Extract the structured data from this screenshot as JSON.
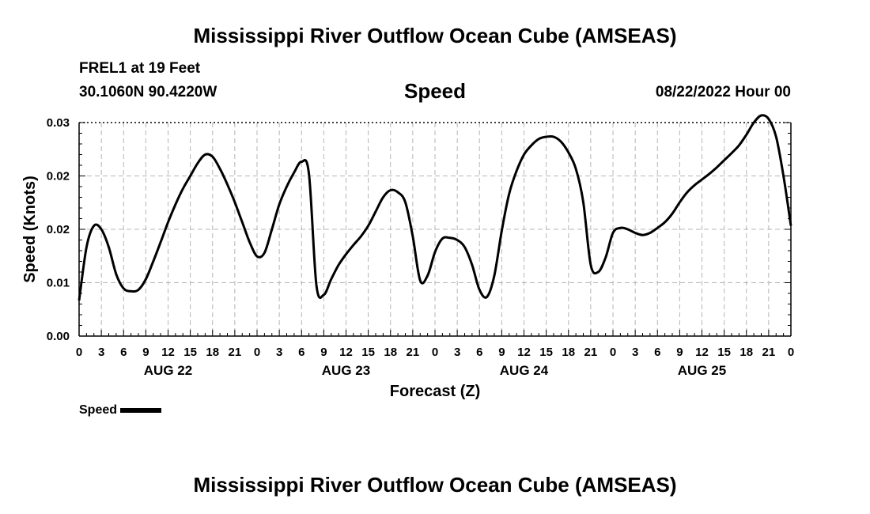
{
  "header": {
    "title": "Mississippi River Outflow Ocean Cube (AMSEAS)",
    "station": "FREL1 at 19 Feet",
    "coordinates": "30.1060N  90.4220W",
    "heading": "Speed",
    "forecast_time": "08/22/2022 Hour 00"
  },
  "footer": {
    "title": "Mississippi River Outflow Ocean Cube (AMSEAS)"
  },
  "chart_data": {
    "type": "line",
    "title": "Speed",
    "xlabel": "Forecast (Z)",
    "ylabel": "Speed (Knots)",
    "ylim": [
      0,
      0.03
    ],
    "yticks": [
      "0.00",
      "0.01",
      "0.02",
      "0.02",
      "0.03"
    ],
    "xlim": [
      0,
      96
    ],
    "xtick_labels": [
      "0",
      "3",
      "6",
      "9",
      "12",
      "15",
      "18",
      "21",
      "0",
      "3",
      "6",
      "9",
      "12",
      "15",
      "18",
      "21",
      "0",
      "3",
      "6",
      "9",
      "12",
      "15",
      "18",
      "21",
      "0",
      "3",
      "6",
      "9",
      "12",
      "15",
      "18",
      "21",
      "0"
    ],
    "day_labels": [
      "AUG 22",
      "AUG 23",
      "AUG 24",
      "AUG 25"
    ],
    "grid": true,
    "legend_position": "bottom-left",
    "series": [
      {
        "name": "Speed",
        "color": "#000000",
        "x": [
          0,
          1,
          2,
          3,
          4,
          5,
          6,
          7,
          8,
          9,
          10,
          11,
          12,
          13,
          14,
          15,
          16,
          17,
          18,
          19,
          20,
          21,
          22,
          23,
          24,
          25,
          26,
          27,
          28,
          29,
          30,
          31,
          32,
          33,
          34,
          35,
          36,
          37,
          38,
          39,
          40,
          41,
          42,
          43,
          44,
          45,
          46,
          47,
          48,
          49,
          50,
          51,
          52,
          53,
          54,
          55,
          56,
          57,
          58,
          59,
          60,
          61,
          62,
          63,
          64,
          65,
          66,
          67,
          68,
          69,
          70,
          71,
          72,
          73,
          74,
          75,
          76,
          77,
          78,
          79,
          80,
          81,
          82,
          83,
          84,
          85,
          86,
          87,
          88,
          89,
          90,
          91,
          92,
          93,
          94,
          95,
          96
        ],
        "values": [
          0.005,
          0.0125,
          0.0155,
          0.015,
          0.0125,
          0.0087,
          0.0067,
          0.0063,
          0.0065,
          0.008,
          0.0105,
          0.0132,
          0.016,
          0.0185,
          0.0207,
          0.0225,
          0.0243,
          0.0255,
          0.0252,
          0.0235,
          0.0213,
          0.0188,
          0.016,
          0.0132,
          0.0112,
          0.0117,
          0.015,
          0.0185,
          0.021,
          0.023,
          0.0245,
          0.0228,
          0.0072,
          0.0058,
          0.008,
          0.01,
          0.0115,
          0.0128,
          0.014,
          0.0155,
          0.0175,
          0.0195,
          0.0205,
          0.0202,
          0.0188,
          0.014,
          0.0078,
          0.0085,
          0.0118,
          0.0137,
          0.0138,
          0.0135,
          0.0125,
          0.01,
          0.0065,
          0.0055,
          0.0085,
          0.0148,
          0.02,
          0.0232,
          0.0255,
          0.0268,
          0.0277,
          0.028,
          0.028,
          0.0273,
          0.0258,
          0.0235,
          0.0188,
          0.01,
          0.009,
          0.011,
          0.0145,
          0.0152,
          0.015,
          0.0145,
          0.0142,
          0.0145,
          0.0152,
          0.016,
          0.0172,
          0.0188,
          0.0202,
          0.0212,
          0.022,
          0.0228,
          0.0237,
          0.0247,
          0.0257,
          0.0268,
          0.0283,
          0.03,
          0.031,
          0.0305,
          0.028,
          0.0225,
          0.0155
        ]
      }
    ]
  }
}
